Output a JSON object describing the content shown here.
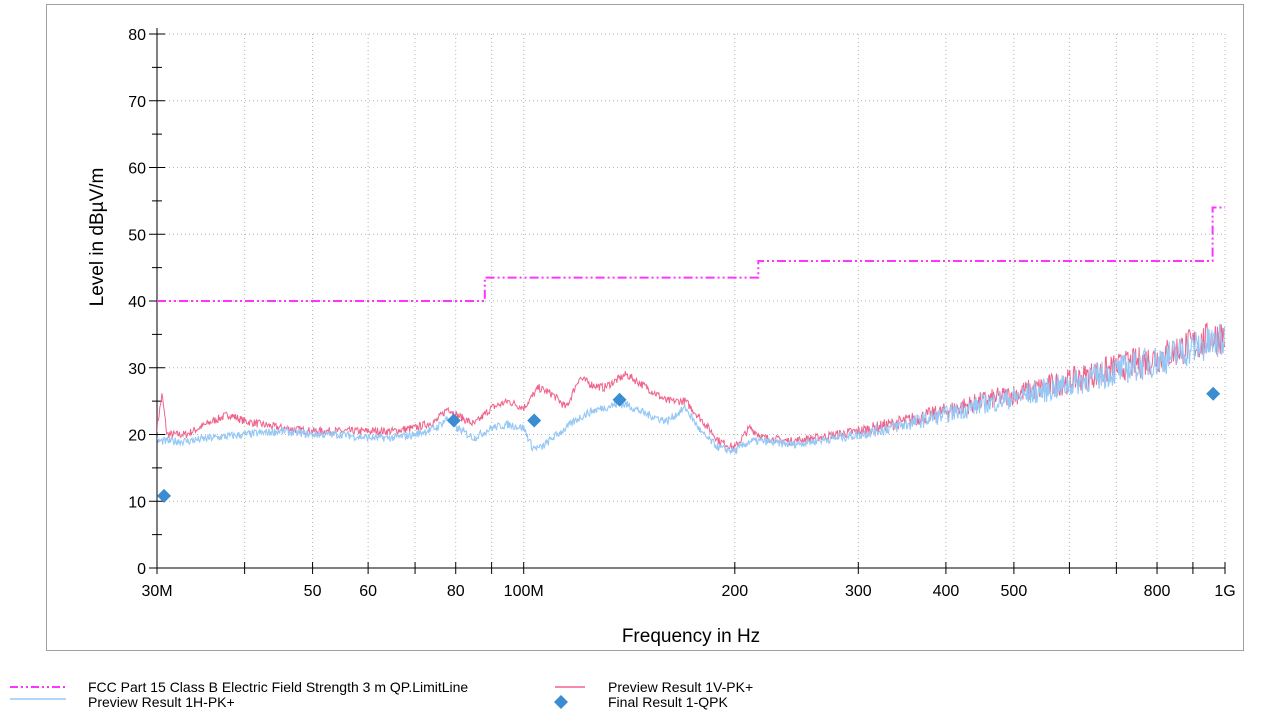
{
  "chart_data": {
    "type": "line",
    "xlabel": "Frequency in Hz",
    "ylabel": "Level in dBµV/m",
    "xscale": "log",
    "xlim": [
      30000000,
      1000000000
    ],
    "ylim": [
      0,
      80
    ],
    "grid": true,
    "legend_position": "bottom",
    "x_ticks": [
      {
        "value": 30000000,
        "label": "30M"
      },
      {
        "value": 50000000,
        "label": "50"
      },
      {
        "value": 60000000,
        "label": "60"
      },
      {
        "value": 80000000,
        "label": "80"
      },
      {
        "value": 100000000,
        "label": "100M"
      },
      {
        "value": 200000000,
        "label": "200"
      },
      {
        "value": 300000000,
        "label": "300"
      },
      {
        "value": 400000000,
        "label": "400"
      },
      {
        "value": 500000000,
        "label": "500"
      },
      {
        "value": 800000000,
        "label": "800"
      },
      {
        "value": 1000000000,
        "label": "1G"
      }
    ],
    "y_ticks": [
      0,
      10,
      20,
      30,
      40,
      50,
      60,
      70,
      80
    ],
    "series": [
      {
        "name": "FCC Part 15 Class B Electric Field Strength 3 m QP.LimitLine",
        "color": "#ff33ff",
        "style": "dash-dot-dot",
        "x": [
          30000000,
          88000000,
          88000000,
          216000000,
          216000000,
          960000000,
          960000000,
          1000000000
        ],
        "y": [
          40,
          40,
          43.5,
          43.5,
          46,
          46,
          54,
          54
        ]
      },
      {
        "name": "Preview Result 1V-PK+",
        "color": "#f0648c",
        "style": "line",
        "x": [
          30000000,
          30500000,
          31000000,
          33000000,
          36000000,
          38000000,
          40000000,
          45000000,
          50000000,
          55000000,
          60000000,
          65000000,
          70000000,
          75000000,
          78000000,
          80000000,
          85000000,
          90000000,
          95000000,
          100000000,
          105000000,
          110000000,
          115000000,
          120000000,
          125000000,
          130000000,
          135000000,
          140000000,
          150000000,
          160000000,
          170000000,
          180000000,
          190000000,
          200000000,
          210000000,
          220000000,
          240000000,
          260000000,
          300000000,
          350000000,
          400000000,
          450000000,
          500000000,
          600000000,
          700000000,
          800000000,
          900000000,
          1000000000
        ],
        "y": [
          21,
          26,
          20,
          20,
          22,
          23,
          22,
          21,
          20.5,
          20.5,
          20.5,
          20.5,
          21,
          22,
          24,
          23,
          21.5,
          24,
          25,
          24,
          27,
          26,
          24,
          28.5,
          27.5,
          27,
          28,
          29,
          27,
          25,
          25,
          22,
          19,
          18,
          21,
          19.5,
          19,
          19.5,
          20.5,
          22,
          23.5,
          25,
          26,
          28,
          30,
          31.5,
          33.5,
          35
        ]
      },
      {
        "name": "Preview Result 1H-PK+",
        "color": "#96c8f5",
        "style": "line",
        "x": [
          30000000,
          33000000,
          36000000,
          40000000,
          45000000,
          50000000,
          55000000,
          60000000,
          65000000,
          70000000,
          75000000,
          78000000,
          80000000,
          85000000,
          90000000,
          95000000,
          100000000,
          103000000,
          106000000,
          110000000,
          115000000,
          120000000,
          125000000,
          130000000,
          135000000,
          140000000,
          150000000,
          160000000,
          170000000,
          180000000,
          190000000,
          200000000,
          210000000,
          220000000,
          240000000,
          260000000,
          300000000,
          350000000,
          400000000,
          450000000,
          500000000,
          600000000,
          700000000,
          800000000,
          900000000,
          1000000000
        ],
        "y": [
          19,
          19,
          19.5,
          20,
          20.5,
          20,
          20,
          19.5,
          19.5,
          20,
          21,
          22.5,
          21,
          19.5,
          21,
          21.5,
          21,
          18,
          18,
          19.5,
          21,
          22.5,
          23.5,
          24,
          24.5,
          24.5,
          23,
          22,
          24,
          20,
          18,
          17.5,
          19,
          19,
          18.5,
          19,
          20,
          21.5,
          23,
          24.5,
          25.5,
          27.5,
          29.5,
          31,
          33,
          34
        ]
      },
      {
        "name": "Final Result 1-QPK",
        "color": "#3c8cd2",
        "style": "marker",
        "x": [
          30700000,
          79500000,
          103500000,
          137000000,
          962000000
        ],
        "y": [
          10.8,
          22.1,
          22.1,
          25.2,
          26.1
        ]
      }
    ]
  },
  "legend": [
    {
      "label": "FCC Part 15 Class B Electric Field Strength 3 m QP.LimitLine",
      "color": "#ff33ff",
      "icon": "dash-dot-line"
    },
    {
      "label": "Preview Result 1V-PK+",
      "color": "#f0648c",
      "icon": "solid-line"
    },
    {
      "label": "Preview Result 1H-PK+",
      "color": "#96c8f5",
      "icon": "solid-line"
    },
    {
      "label": "Final Result 1-QPK",
      "color": "#3c8cd2",
      "icon": "diamond-marker"
    }
  ]
}
